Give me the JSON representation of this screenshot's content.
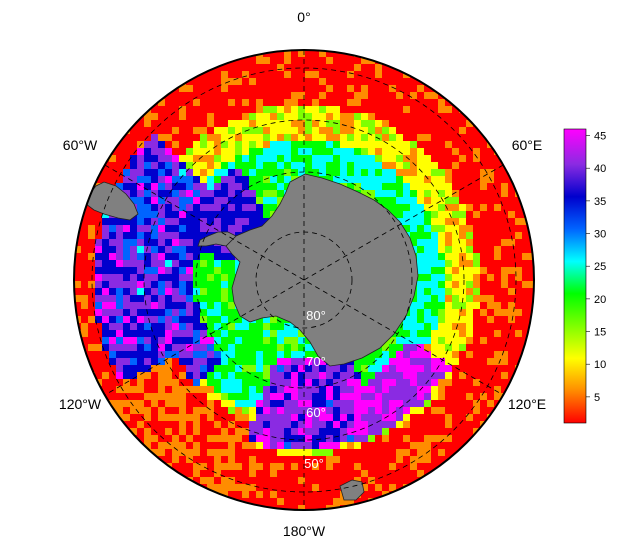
{
  "map": {
    "projection": "south-polar-stereographic",
    "longitude_labels": {
      "top": "0°",
      "upper_left": "60°W",
      "upper_right": "60°E",
      "lower_left": "120°W",
      "lower_right": "120°E",
      "bottom": "180°W"
    },
    "latitude_labels": [
      "80°",
      "70°",
      "60°",
      "50°"
    ],
    "land_color": "#808080",
    "graticule": "dashed"
  },
  "colorbar": {
    "ticks": [
      "45",
      "40",
      "35",
      "30",
      "25",
      "20",
      "15",
      "10",
      "5"
    ],
    "range": [
      1,
      46
    ],
    "colormap_bottom_to_top": [
      "#ff0000",
      "#ff8c00",
      "#ffff00",
      "#7fff00",
      "#00ff00",
      "#00ffff",
      "#0064ff",
      "#0000cd",
      "#8a2be2",
      "#ff00ff"
    ]
  }
}
